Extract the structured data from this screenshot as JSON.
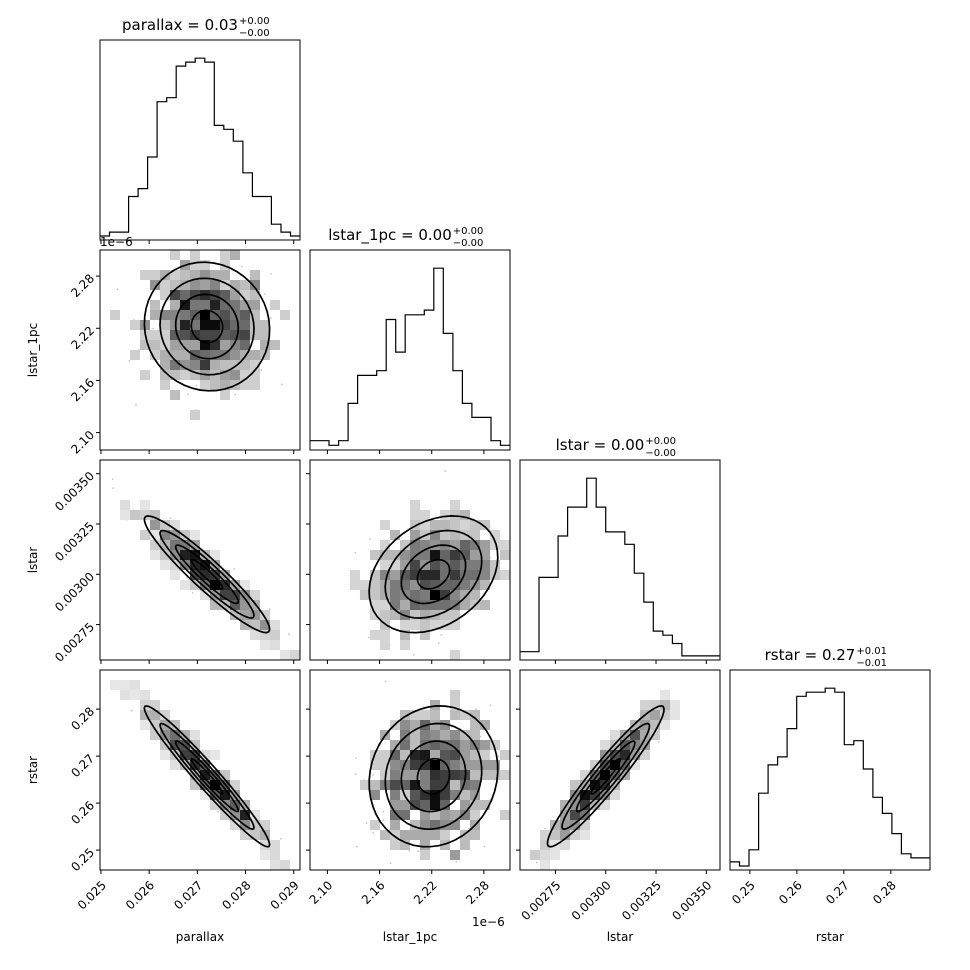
{
  "chart_data": {
    "type": "corner",
    "parameters": [
      "parallax",
      "lstar_1pc",
      "lstar",
      "rstar"
    ],
    "axis_labels": [
      "parallax",
      "lstar_1pc",
      "lstar",
      "rstar"
    ],
    "titles": [
      {
        "main": "parallax = 0.03",
        "sup": "+0.00",
        "sub": "−0.00"
      },
      {
        "main": "lstar_1pc = 0.00",
        "sup": "+0.00",
        "sub": "−0.00"
      },
      {
        "main": "lstar = 0.00",
        "sup": "+0.00",
        "sub": "−0.00"
      },
      {
        "main": "rstar = 0.27",
        "sup": "+0.01",
        "sub": "−0.01"
      }
    ],
    "offset_text": "1e−6",
    "ranges": [
      [
        0.02498,
        0.02913
      ],
      [
        2.08e-06,
        2.31e-06
      ],
      [
        0.002574,
        0.003568
      ],
      [
        0.24577,
        0.28833
      ]
    ],
    "ticks": [
      {
        "values": [
          0.025,
          0.026,
          0.027,
          0.028,
          0.029
        ],
        "labels": [
          "0.025",
          "0.026",
          "0.027",
          "0.028",
          "0.029"
        ]
      },
      {
        "values": [
          2.1e-06,
          2.16e-06,
          2.22e-06,
          2.28e-06
        ],
        "labels": [
          "2.10",
          "2.16",
          "2.22",
          "2.28"
        ]
      },
      {
        "values": [
          0.00275,
          0.003,
          0.00325,
          0.0035
        ],
        "labels": [
          "0.00275",
          "0.00300",
          "0.00325",
          "0.00350"
        ]
      },
      {
        "values": [
          0.25,
          0.26,
          0.27,
          0.28
        ],
        "labels": [
          "0.25",
          "0.26",
          "0.27",
          "0.28"
        ]
      }
    ],
    "histograms": [
      {
        "param": "parallax",
        "counts": [
          1,
          2,
          2,
          11,
          13,
          21,
          35,
          36,
          44,
          45,
          46,
          45,
          29,
          28,
          25,
          17,
          11,
          11,
          4,
          2,
          1
        ]
      },
      {
        "param": "lstar_1pc",
        "counts": [
          2,
          2,
          1,
          2,
          10,
          16,
          16,
          17,
          28,
          21,
          29,
          29,
          30,
          39,
          25,
          17,
          10,
          7,
          7,
          2,
          1
        ]
      },
      {
        "param": "lstar",
        "counts": [
          2,
          2,
          20,
          20,
          30,
          37,
          37,
          44,
          37,
          31,
          31,
          28,
          21,
          14,
          7,
          6,
          4,
          1,
          1,
          1,
          1
        ]
      },
      {
        "param": "rstar",
        "counts": [
          2,
          1,
          5,
          19,
          26,
          28,
          35,
          43,
          44,
          44,
          45,
          44,
          31,
          32,
          25,
          18,
          14,
          9,
          4,
          3,
          3
        ]
      }
    ],
    "correlations": [
      {
        "x": "parallax",
        "y": "lstar_1pc",
        "rho": -0.05
      },
      {
        "x": "parallax",
        "y": "lstar",
        "rho": -0.94
      },
      {
        "x": "lstar_1pc",
        "y": "lstar",
        "rho": 0.3
      },
      {
        "x": "parallax",
        "y": "rstar",
        "rho": -0.97
      },
      {
        "x": "lstar_1pc",
        "y": "rstar",
        "rho": 0.1
      },
      {
        "x": "lstar",
        "y": "rstar",
        "rho": 0.95
      }
    ],
    "means": [
      0.0272,
      2.222e-06,
      0.003,
      0.2657
    ],
    "sigmas": [
      0.00065,
      3.7e-08,
      0.000145,
      0.0075
    ],
    "legend": "none",
    "grid": false
  }
}
